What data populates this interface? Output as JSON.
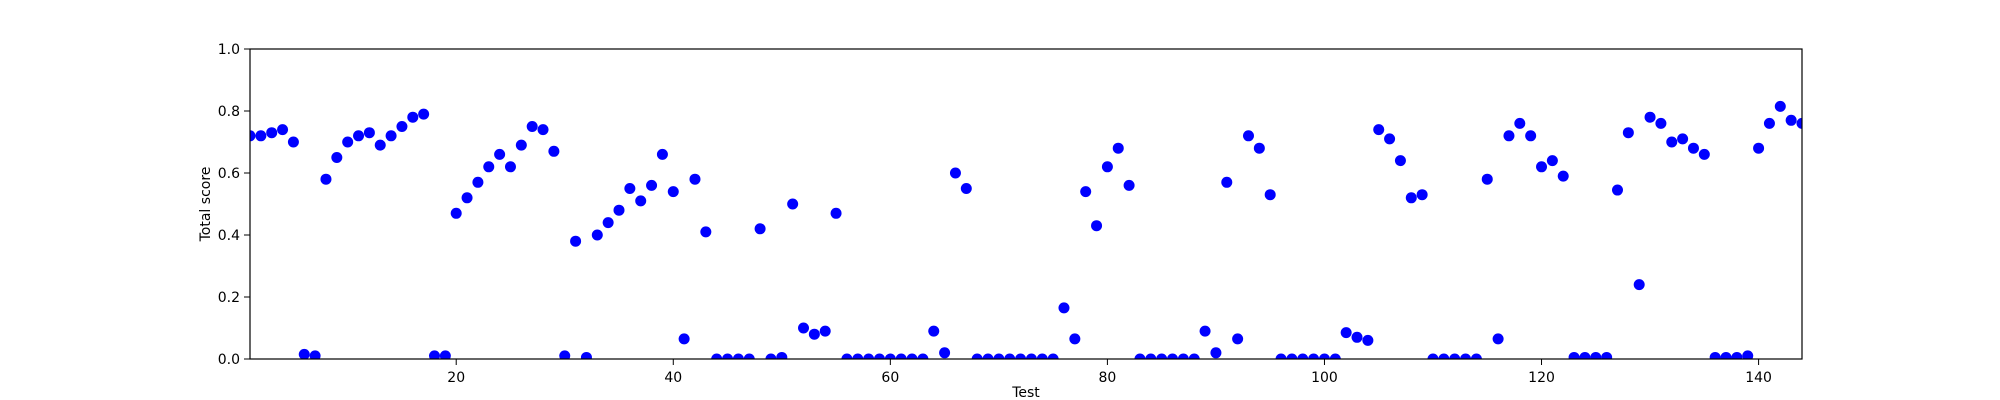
{
  "chart_data": {
    "type": "scatter",
    "title": "",
    "xlabel": "Test",
    "ylabel": "Total score",
    "xlim": [
      1,
      144
    ],
    "ylim": [
      0,
      1.0
    ],
    "x_ticks": [
      20,
      40,
      60,
      80,
      100,
      120,
      140
    ],
    "y_ticks": [
      "0.0",
      "0.2",
      "0.4",
      "0.6",
      "0.8",
      "1.0"
    ],
    "grid": false,
    "legend": "none",
    "marker_color": "#0000ff",
    "series": [
      {
        "x": [
          1,
          2,
          3,
          4,
          5,
          6,
          7,
          8,
          9,
          10,
          11,
          12,
          13,
          14,
          15,
          16,
          17,
          18,
          19,
          20,
          21,
          22,
          23,
          24,
          25,
          26,
          27,
          28,
          29,
          30,
          31,
          32,
          33,
          34,
          35,
          36,
          37,
          38,
          39,
          40,
          41,
          42,
          43,
          44,
          45,
          46,
          47,
          48,
          49,
          50,
          51,
          52,
          53,
          54,
          55,
          56,
          57,
          58,
          59,
          60,
          61,
          62,
          63,
          64,
          65,
          66,
          67,
          68,
          69,
          70,
          71,
          72,
          73,
          74,
          75,
          76,
          77,
          78,
          79,
          80,
          81,
          82,
          83,
          84,
          85,
          86,
          87,
          88,
          89,
          90,
          91,
          92,
          93,
          94,
          95,
          96,
          97,
          98,
          99,
          100,
          101,
          102,
          103,
          104,
          105,
          106,
          107,
          108,
          109,
          110,
          111,
          112,
          113,
          114,
          115,
          116,
          117,
          118,
          119,
          120,
          121,
          122,
          123,
          124,
          125,
          126,
          127,
          128,
          129,
          130,
          131,
          132,
          133,
          134,
          135,
          136,
          137,
          138,
          139,
          140,
          141,
          142,
          143,
          144
        ],
        "y": [
          0.72,
          0.72,
          0.73,
          0.74,
          0.7,
          0.015,
          0.01,
          0.58,
          0.65,
          0.7,
          0.72,
          0.73,
          0.69,
          0.72,
          0.75,
          0.78,
          0.79,
          0.01,
          0.01,
          0.47,
          0.52,
          0.57,
          0.62,
          0.66,
          0.62,
          0.69,
          0.75,
          0.74,
          0.67,
          0.01,
          0.38,
          0.005,
          0.4,
          0.44,
          0.48,
          0.55,
          0.51,
          0.56,
          0.66,
          0.54,
          0.065,
          0.58,
          0.41,
          0.0,
          0.0,
          0.0,
          0.0,
          0.42,
          0.0,
          0.005,
          0.5,
          0.1,
          0.08,
          0.09,
          0.47,
          0.0,
          0.0,
          0.0,
          0.0,
          0.0,
          0.0,
          0.0,
          0.0,
          0.09,
          0.02,
          0.6,
          0.55,
          0.0,
          0.0,
          0.0,
          0.0,
          0.0,
          0.0,
          0.0,
          0.0,
          0.165,
          0.065,
          0.54,
          0.43,
          0.62,
          0.68,
          0.56,
          0.0,
          0.0,
          0.0,
          0.0,
          0.0,
          0.0,
          0.09,
          0.02,
          0.57,
          0.065,
          0.72,
          0.68,
          0.53,
          0.0,
          0.0,
          0.0,
          0.0,
          0.0,
          0.0,
          0.085,
          0.07,
          0.06,
          0.74,
          0.71,
          0.64,
          0.52,
          0.53,
          0.0,
          0.0,
          0.0,
          0.0,
          0.0,
          0.58,
          0.065,
          0.72,
          0.76,
          0.72,
          0.62,
          0.64,
          0.59,
          0.005,
          0.005,
          0.005,
          0.005,
          0.545,
          0.73,
          0.24,
          0.78,
          0.76,
          0.7,
          0.71,
          0.68,
          0.66,
          0.005,
          0.005,
          0.005,
          0.01,
          0.68,
          0.76,
          0.815,
          0.77,
          0.76
        ]
      }
    ]
  }
}
